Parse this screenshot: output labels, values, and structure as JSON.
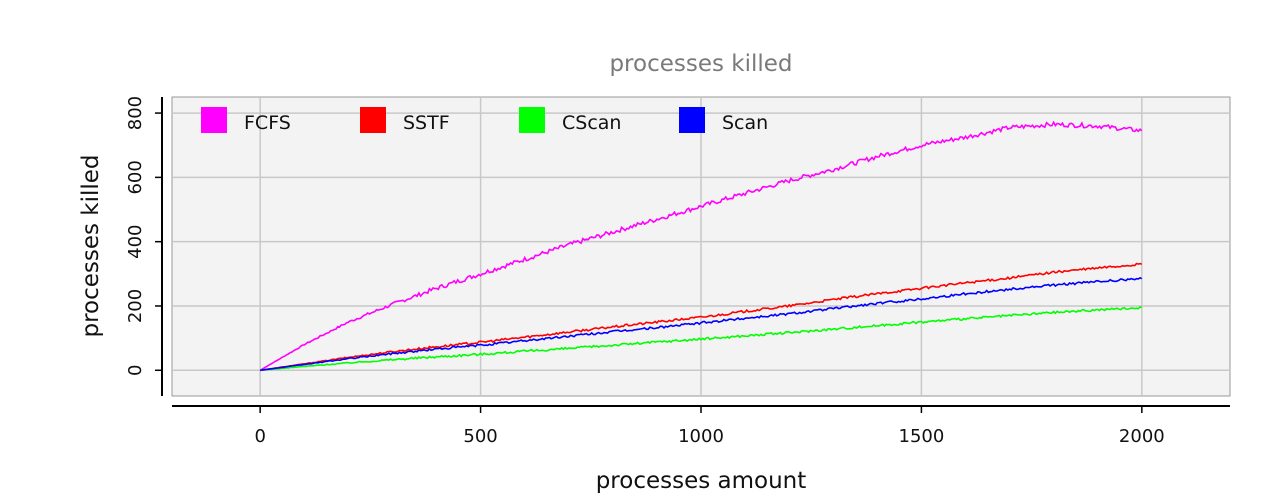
{
  "chart_data": {
    "type": "line",
    "title": "processes killed",
    "xlabel": "processes amount",
    "ylabel": "processes killed",
    "xlim": [
      -200,
      2200
    ],
    "ylim": [
      -80,
      850
    ],
    "xticks": [
      0,
      500,
      1000,
      1500,
      2000
    ],
    "yticks": [
      0,
      200,
      400,
      600,
      800
    ],
    "grid": true,
    "legend_position": "top-left",
    "x": [
      0,
      100,
      200,
      300,
      400,
      500,
      600,
      700,
      800,
      900,
      1000,
      1100,
      1200,
      1300,
      1400,
      1500,
      1600,
      1700,
      1800,
      1900,
      2000
    ],
    "series": [
      {
        "name": "FCFS",
        "color": "#ff00ff",
        "values": [
          0,
          80,
          150,
          205,
          255,
          300,
          345,
          390,
          430,
          470,
          510,
          550,
          590,
          625,
          665,
          700,
          725,
          755,
          765,
          760,
          745
        ]
      },
      {
        "name": "SSTF",
        "color": "#ff0000",
        "values": [
          0,
          20,
          40,
          58,
          73,
          87,
          103,
          119,
          135,
          150,
          165,
          183,
          200,
          220,
          238,
          255,
          272,
          287,
          305,
          318,
          330
        ]
      },
      {
        "name": "CScan",
        "color": "#00ff00",
        "values": [
          0,
          12,
          23,
          33,
          42,
          50,
          59,
          68,
          78,
          88,
          97,
          107,
          117,
          128,
          139,
          150,
          160,
          170,
          180,
          188,
          195
        ]
      },
      {
        "name": "Scan",
        "color": "#0000ff",
        "values": [
          0,
          18,
          36,
          52,
          66,
          78,
          92,
          106,
          120,
          133,
          147,
          162,
          176,
          192,
          208,
          222,
          238,
          252,
          265,
          276,
          285
        ]
      }
    ]
  }
}
